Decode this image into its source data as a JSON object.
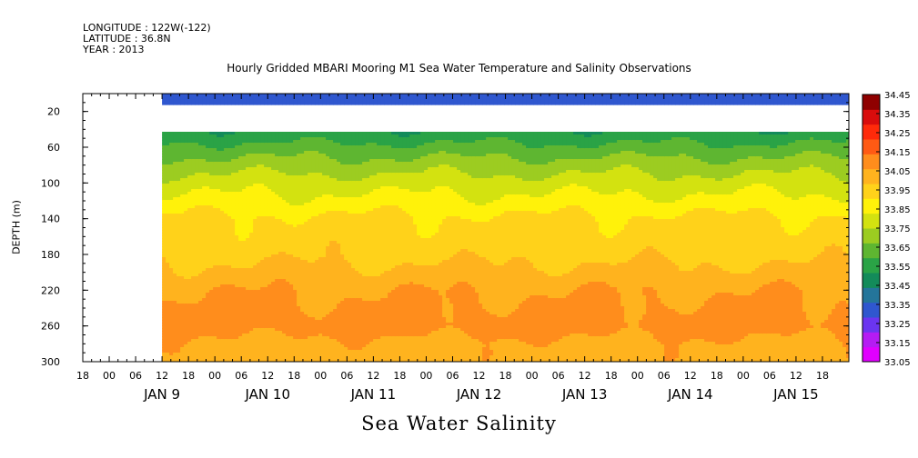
{
  "header": {
    "longitude": "LONGITUDE : 122W(-122)",
    "latitude": "LATITUDE : 36.8N",
    "year": "YEAR : 2013"
  },
  "footer_title": "Sea Water Salinity",
  "chart_data": {
    "type": "heatmap",
    "title": "Hourly Gridded MBARI Mooring M1 Sea Water Temperature and Salinity Observations",
    "xlabel": "",
    "ylabel": "DEPTH (m)",
    "ylim": [
      300,
      0
    ],
    "y_ticks": [
      20,
      60,
      100,
      140,
      180,
      220,
      260,
      300
    ],
    "x_hour_ticks": [
      "18",
      "00",
      "06",
      "12",
      "18",
      "00",
      "06",
      "12",
      "18",
      "00",
      "06",
      "12",
      "18",
      "00",
      "06",
      "12",
      "18",
      "00",
      "06",
      "12",
      "18",
      "00",
      "06",
      "12",
      "18",
      "00",
      "06",
      "12",
      "18"
    ],
    "x_day_labels": [
      "JAN 9",
      "JAN 10",
      "JAN 11",
      "JAN 12",
      "JAN 13",
      "JAN 14",
      "JAN 15"
    ],
    "colorbar_levels": [
      "33.05",
      "33.15",
      "33.25",
      "33.35",
      "33.45",
      "33.55",
      "33.65",
      "33.75",
      "33.85",
      "33.95",
      "34.05",
      "34.15",
      "34.25",
      "34.35",
      "34.45"
    ],
    "colorbar_colors": [
      "#e100ff",
      "#b51cf3",
      "#6b35f0",
      "#2f57cf",
      "#24759a",
      "#138b5a",
      "#2aa346",
      "#5eb631",
      "#9ccc21",
      "#d3e210",
      "#fff20a",
      "#ffd21a",
      "#ffb31e",
      "#ff8d1c",
      "#ff5a14",
      "#ff2a0a",
      "#d90c0c",
      "#8f0000"
    ],
    "depth_profile": [
      {
        "depth": 10,
        "salinity": 33.33
      },
      {
        "depth": 40,
        "salinity": 33.55
      },
      {
        "depth": 60,
        "salinity": 33.68
      },
      {
        "depth": 80,
        "salinity": 33.8
      },
      {
        "depth": 100,
        "salinity": 33.9
      },
      {
        "depth": 120,
        "salinity": 33.98
      },
      {
        "depth": 140,
        "salinity": 34.07
      },
      {
        "depth": 180,
        "salinity": 34.12
      },
      {
        "depth": 200,
        "salinity": 34.18
      },
      {
        "depth": 220,
        "salinity": 34.24
      },
      {
        "depth": 260,
        "salinity": 34.3
      },
      {
        "depth": 280,
        "salinity": 34.22
      },
      {
        "depth": 300,
        "salinity": 34.2
      }
    ],
    "no_data_depth_range": [
      15,
      40
    ],
    "data_start_hour": 0
  }
}
